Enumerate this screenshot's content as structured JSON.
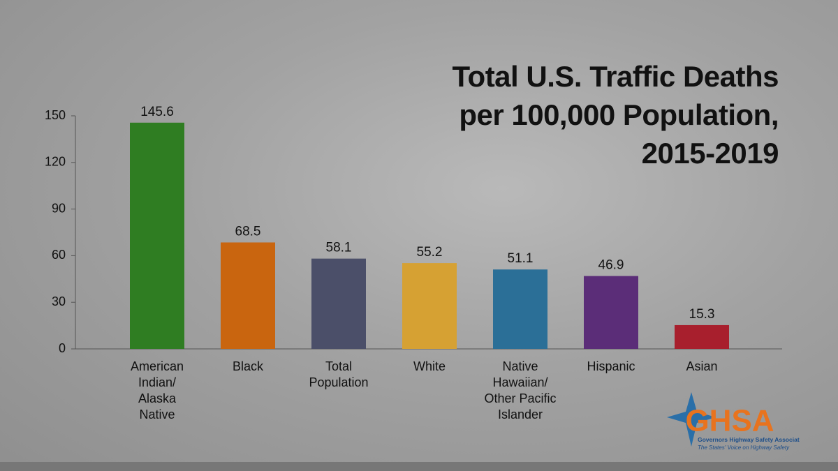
{
  "chart_data": {
    "type": "bar",
    "title": "Total U.S. Traffic Deaths\nper 100,000 Population,\n2015-2019",
    "categories": [
      "American\nIndian/\nAlaska\nNative",
      "Black",
      "Total\nPopulation",
      "White",
      "Native\nHawaiian/\nOther Pacific\nIslander",
      "Hispanic",
      "Asian"
    ],
    "values": [
      145.6,
      68.5,
      58.1,
      55.2,
      51.1,
      46.9,
      15.3
    ],
    "colors": [
      "#2f7d22",
      "#c9650f",
      "#4b4f69",
      "#d6a133",
      "#2b6f97",
      "#5b2d78",
      "#a81f2d"
    ],
    "ylim": [
      0,
      150
    ],
    "yticks": [
      0,
      30,
      60,
      90,
      120,
      150
    ],
    "grid": false
  },
  "logo": {
    "name": "GHSA",
    "subtitle": "Governors Highway Safety Association",
    "tagline": "The States' Voice on Highway Safety"
  }
}
